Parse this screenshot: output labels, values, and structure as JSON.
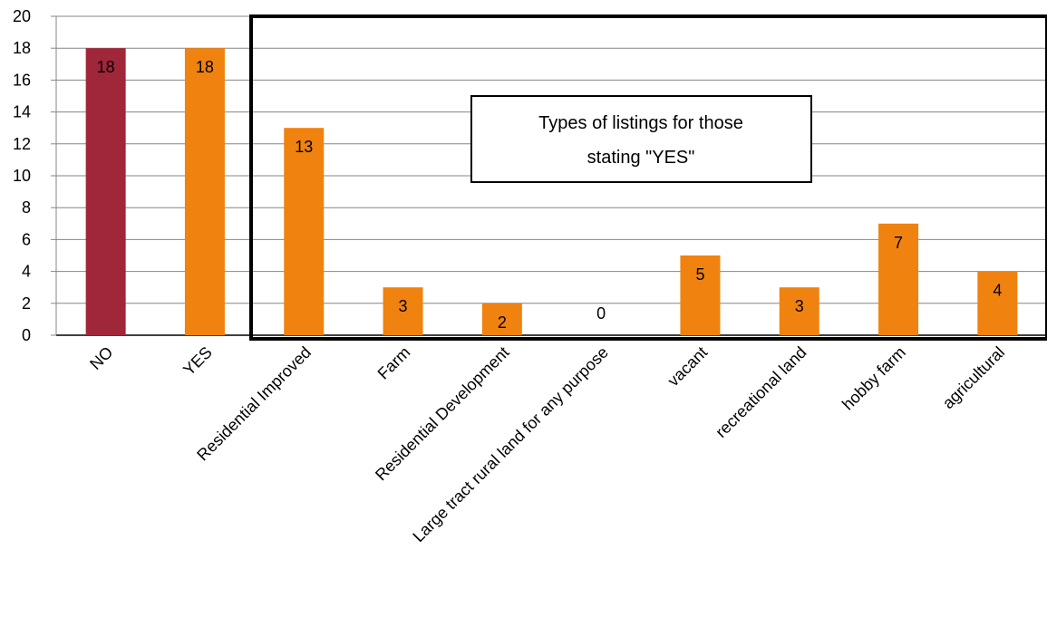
{
  "chart_data": {
    "type": "bar",
    "title": "",
    "xlabel": "",
    "ylabel": "",
    "ylim": [
      0,
      20
    ],
    "yticks": [
      0,
      2,
      4,
      6,
      8,
      10,
      12,
      14,
      16,
      18,
      20
    ],
    "grid": true,
    "categories": [
      "NO",
      "YES",
      "Residential Improved",
      "Farm",
      "Residential Development",
      "Large tract rural land for any purpose",
      "vacant",
      "recreational land",
      "hobby farm",
      "agricultural"
    ],
    "values": [
      18,
      18,
      13,
      3,
      2,
      0,
      5,
      3,
      7,
      4
    ],
    "data_labels": [
      "18",
      "18",
      "13",
      "3",
      "2",
      "0",
      "5",
      "3",
      "7",
      "4"
    ],
    "bar_colors": [
      "#A0263A",
      "#F0820F",
      "#F0820F",
      "#F0820F",
      "#F0820F",
      "#F0820F",
      "#F0820F",
      "#F0820F",
      "#F0820F",
      "#F0820F"
    ],
    "annotation": {
      "lines": [
        "Types of listings for those",
        "stating \"YES\""
      ]
    }
  }
}
